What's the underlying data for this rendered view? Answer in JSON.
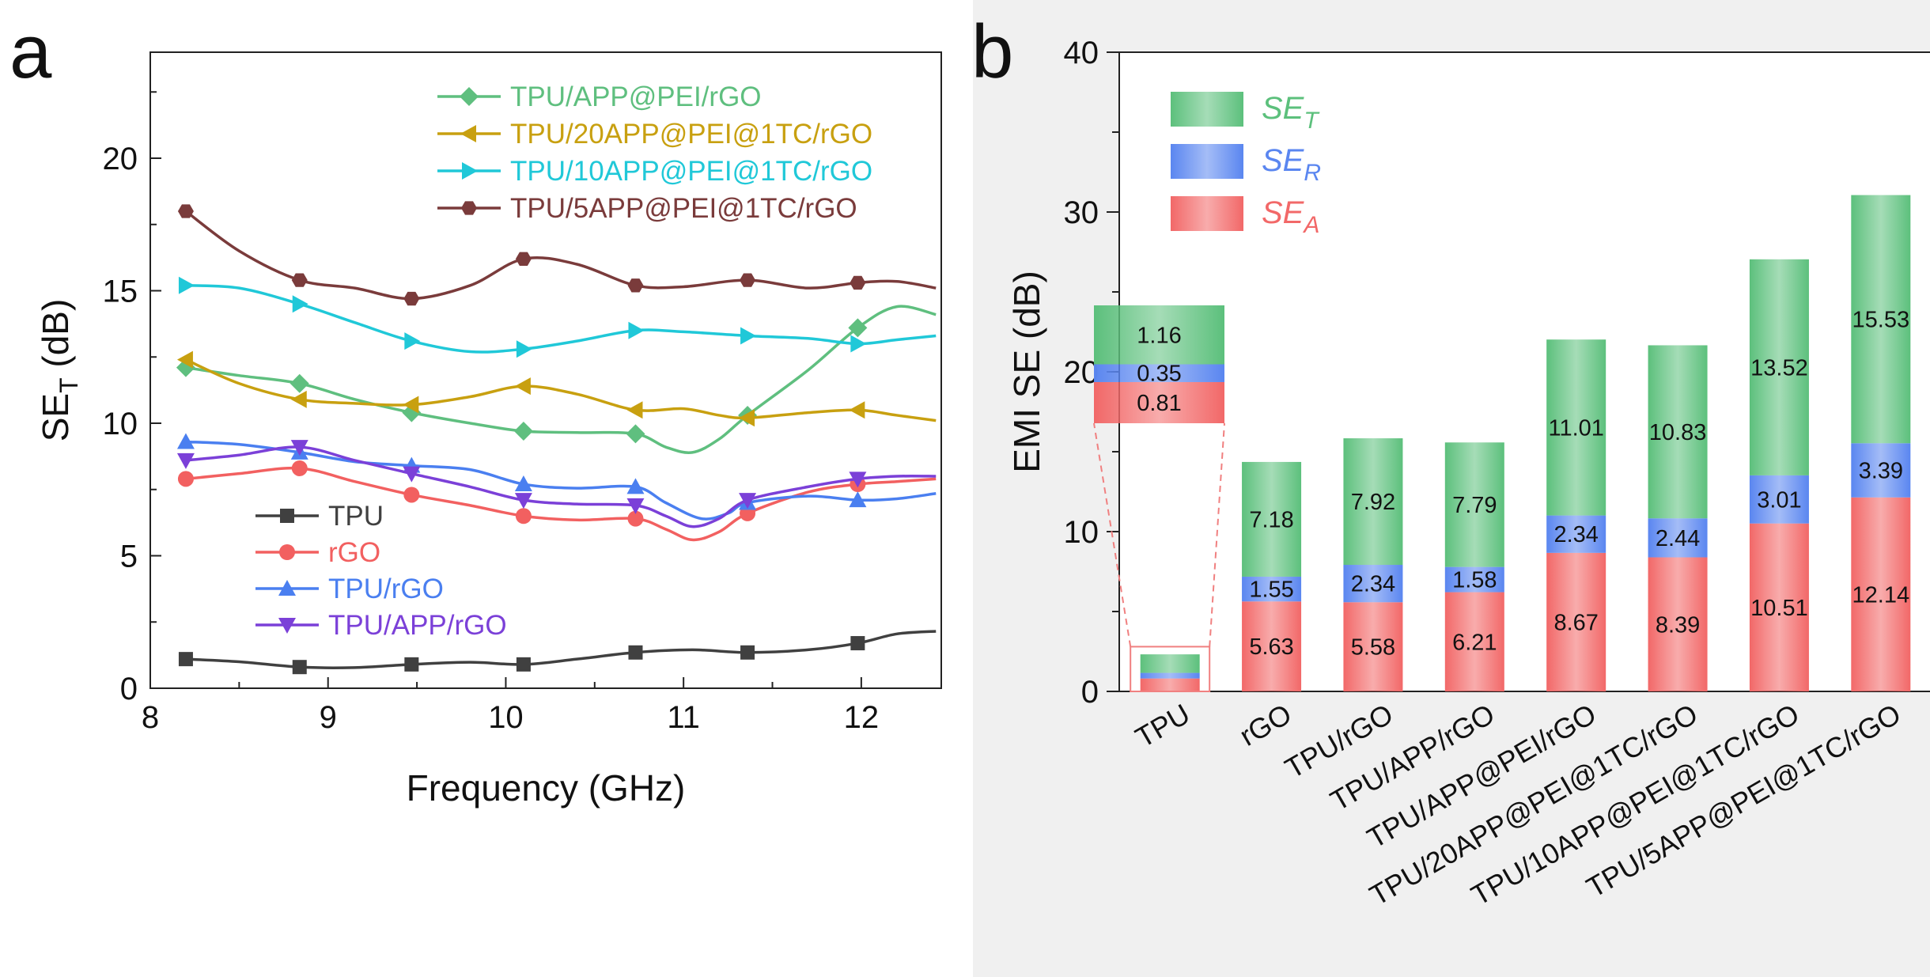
{
  "panels": {
    "a": "a",
    "b": "b"
  },
  "chart_data": [
    {
      "type": "line",
      "panel": "a",
      "title": "",
      "xlabel": "Frequency (GHz)",
      "ylabel": "SE",
      "ylabel_sub": "T",
      "ylabel_unit": "(dB)",
      "xlim": [
        8,
        12.45
      ],
      "ylim": [
        0,
        24
      ],
      "xticks": [
        "8",
        "9",
        "10",
        "11",
        "12"
      ],
      "yticks": [
        "0",
        "5",
        "10",
        "15",
        "20"
      ],
      "x": [
        8.2,
        8.84,
        9.47,
        10.1,
        10.73,
        11.36,
        11.98
      ],
      "series": [
        {
          "name": "TPU",
          "color": "#404040",
          "marker": "square",
          "values": [
            1.1,
            0.8,
            0.9,
            0.9,
            1.35,
            1.35,
            1.7
          ],
          "curve": [
            [
              8.2,
              1.1
            ],
            [
              8.5,
              1.0
            ],
            [
              8.84,
              0.8
            ],
            [
              9.15,
              0.78
            ],
            [
              9.47,
              0.9
            ],
            [
              9.8,
              0.98
            ],
            [
              10.1,
              0.9
            ],
            [
              10.4,
              1.1
            ],
            [
              10.73,
              1.35
            ],
            [
              11.05,
              1.45
            ],
            [
              11.36,
              1.35
            ],
            [
              11.7,
              1.45
            ],
            [
              11.98,
              1.7
            ],
            [
              12.2,
              2.05
            ],
            [
              12.42,
              2.15
            ]
          ]
        },
        {
          "name": "rGO",
          "color": "#f26060",
          "marker": "circle",
          "values": [
            7.9,
            8.3,
            7.3,
            6.5,
            6.4,
            6.6,
            7.7
          ],
          "curve": [
            [
              8.2,
              7.9
            ],
            [
              8.5,
              8.1
            ],
            [
              8.84,
              8.3
            ],
            [
              9.15,
              7.8
            ],
            [
              9.47,
              7.3
            ],
            [
              9.8,
              6.9
            ],
            [
              10.1,
              6.5
            ],
            [
              10.4,
              6.35
            ],
            [
              10.73,
              6.4
            ],
            [
              10.9,
              6.0
            ],
            [
              11.05,
              5.6
            ],
            [
              11.2,
              5.9
            ],
            [
              11.36,
              6.6
            ],
            [
              11.7,
              7.4
            ],
            [
              11.98,
              7.7
            ],
            [
              12.2,
              7.8
            ],
            [
              12.42,
              7.9
            ]
          ]
        },
        {
          "name": "TPU/rGO",
          "color": "#4a7ff0",
          "marker": "triangle-up",
          "values": [
            9.3,
            8.9,
            8.4,
            7.7,
            7.6,
            7.0,
            7.1
          ],
          "curve": [
            [
              8.2,
              9.3
            ],
            [
              8.5,
              9.2
            ],
            [
              8.84,
              8.9
            ],
            [
              9.15,
              8.55
            ],
            [
              9.47,
              8.4
            ],
            [
              9.8,
              8.25
            ],
            [
              10.1,
              7.7
            ],
            [
              10.4,
              7.55
            ],
            [
              10.73,
              7.6
            ],
            [
              10.9,
              7.0
            ],
            [
              11.1,
              6.4
            ],
            [
              11.25,
              6.6
            ],
            [
              11.36,
              7.0
            ],
            [
              11.7,
              7.25
            ],
            [
              11.98,
              7.1
            ],
            [
              12.2,
              7.15
            ],
            [
              12.42,
              7.35
            ]
          ]
        },
        {
          "name": "TPU/APP/rGO",
          "color": "#7b40d8",
          "marker": "triangle-down",
          "values": [
            8.6,
            9.1,
            8.1,
            7.1,
            6.9,
            7.1,
            7.9
          ],
          "curve": [
            [
              8.2,
              8.6
            ],
            [
              8.5,
              8.8
            ],
            [
              8.84,
              9.1
            ],
            [
              9.15,
              8.6
            ],
            [
              9.47,
              8.1
            ],
            [
              9.8,
              7.6
            ],
            [
              10.1,
              7.1
            ],
            [
              10.4,
              6.95
            ],
            [
              10.73,
              6.9
            ],
            [
              10.9,
              6.5
            ],
            [
              11.05,
              6.1
            ],
            [
              11.2,
              6.4
            ],
            [
              11.36,
              7.1
            ],
            [
              11.7,
              7.6
            ],
            [
              11.98,
              7.9
            ],
            [
              12.2,
              8.0
            ],
            [
              12.42,
              8.0
            ]
          ]
        },
        {
          "name": "TPU/APP@PEI/rGO",
          "color": "#5fbf7f",
          "marker": "diamond",
          "values": [
            12.1,
            11.5,
            10.4,
            9.7,
            9.6,
            10.3,
            13.6
          ],
          "curve": [
            [
              8.2,
              12.1
            ],
            [
              8.5,
              11.8
            ],
            [
              8.84,
              11.5
            ],
            [
              9.15,
              10.9
            ],
            [
              9.47,
              10.4
            ],
            [
              9.8,
              10.0
            ],
            [
              10.1,
              9.7
            ],
            [
              10.4,
              9.65
            ],
            [
              10.73,
              9.6
            ],
            [
              10.9,
              9.1
            ],
            [
              11.05,
              8.9
            ],
            [
              11.2,
              9.4
            ],
            [
              11.36,
              10.3
            ],
            [
              11.7,
              12.0
            ],
            [
              11.98,
              13.6
            ],
            [
              12.2,
              14.4
            ],
            [
              12.42,
              14.1
            ]
          ]
        },
        {
          "name": "TPU/20APP@PEI@1TC/rGO",
          "color": "#c8a010",
          "marker": "triangle-left",
          "values": [
            12.4,
            10.9,
            10.7,
            11.4,
            10.5,
            10.2,
            10.5
          ],
          "curve": [
            [
              8.2,
              12.4
            ],
            [
              8.5,
              11.5
            ],
            [
              8.84,
              10.9
            ],
            [
              9.15,
              10.75
            ],
            [
              9.47,
              10.7
            ],
            [
              9.8,
              11.0
            ],
            [
              10.1,
              11.4
            ],
            [
              10.4,
              11.1
            ],
            [
              10.73,
              10.5
            ],
            [
              11.0,
              10.55
            ],
            [
              11.2,
              10.3
            ],
            [
              11.36,
              10.2
            ],
            [
              11.7,
              10.4
            ],
            [
              11.98,
              10.5
            ],
            [
              12.2,
              10.3
            ],
            [
              12.42,
              10.1
            ]
          ]
        },
        {
          "name": "TPU/10APP@PEI@1TC/rGO",
          "color": "#20c8d8",
          "marker": "triangle-right",
          "values": [
            15.2,
            14.5,
            13.1,
            12.8,
            13.5,
            13.3,
            13.0
          ],
          "curve": [
            [
              8.2,
              15.2
            ],
            [
              8.5,
              15.1
            ],
            [
              8.84,
              14.5
            ],
            [
              9.15,
              13.8
            ],
            [
              9.47,
              13.1
            ],
            [
              9.8,
              12.7
            ],
            [
              10.1,
              12.8
            ],
            [
              10.4,
              13.1
            ],
            [
              10.73,
              13.5
            ],
            [
              11.0,
              13.45
            ],
            [
              11.36,
              13.3
            ],
            [
              11.7,
              13.2
            ],
            [
              11.98,
              13.0
            ],
            [
              12.2,
              13.15
            ],
            [
              12.42,
              13.3
            ]
          ]
        },
        {
          "name": "TPU/5APP@PEI@1TC/rGO",
          "color": "#7a3b3b",
          "marker": "hexagon",
          "values": [
            18.0,
            15.4,
            14.7,
            16.2,
            15.2,
            15.4,
            15.3
          ],
          "curve": [
            [
              8.2,
              18.0
            ],
            [
              8.5,
              16.5
            ],
            [
              8.84,
              15.4
            ],
            [
              9.15,
              15.1
            ],
            [
              9.47,
              14.7
            ],
            [
              9.8,
              15.2
            ],
            [
              10.1,
              16.2
            ],
            [
              10.4,
              16.0
            ],
            [
              10.73,
              15.2
            ],
            [
              11.0,
              15.15
            ],
            [
              11.36,
              15.4
            ],
            [
              11.7,
              15.1
            ],
            [
              11.98,
              15.3
            ],
            [
              12.2,
              15.35
            ],
            [
              12.42,
              15.1
            ]
          ]
        }
      ],
      "legend_upper": [
        "TPU/APP@PEI/rGO",
        "TPU/20APP@PEI@1TC/rGO",
        "TPU/10APP@PEI@1TC/rGO",
        "TPU/5APP@PEI@1TC/rGO"
      ],
      "legend_lower": [
        "TPU",
        "rGO",
        "TPU/rGO",
        "TPU/APP/rGO"
      ]
    },
    {
      "type": "bar",
      "stacked": true,
      "panel": "b",
      "title": "",
      "xlabel": "",
      "ylabel": "EMI SE (dB)",
      "ylim": [
        0,
        40
      ],
      "yticks": [
        "0",
        "10",
        "20",
        "30",
        "40"
      ],
      "categories": [
        "TPU",
        "rGO",
        "TPU/rGO",
        "TPU/APP/rGO",
        "TPU/APP@PEI/rGO",
        "TPU/20APP@PEI@1TC/rGO",
        "TPU/10APP@PEI@1TC/rGO",
        "TPU/5APP@PEI@1TC/rGO"
      ],
      "series": [
        {
          "name": "SE",
          "sub": "A",
          "color": "#f26868",
          "values": [
            0.81,
            5.63,
            5.58,
            6.21,
            8.67,
            8.39,
            10.51,
            12.14
          ],
          "labels": [
            "0.81",
            "5.63",
            "5.58",
            "6.21",
            "8.67",
            "8.39",
            "10.51",
            "12.14"
          ]
        },
        {
          "name": "SE",
          "sub": "R",
          "color": "#5a86f0",
          "values": [
            0.35,
            1.55,
            2.34,
            1.58,
            2.34,
            2.44,
            3.01,
            3.39
          ],
          "labels": [
            "0.35",
            "1.55",
            "2.34",
            "1.58",
            "2.34",
            "2.44",
            "3.01",
            "3.39"
          ]
        },
        {
          "name": "SE",
          "sub": "T",
          "color": "#5cc07c",
          "values": [
            1.16,
            7.18,
            7.92,
            7.79,
            11.01,
            10.83,
            13.52,
            15.53
          ],
          "labels": [
            "1.16",
            "7.18",
            "7.92",
            "7.79",
            "11.01",
            "10.83",
            "13.52",
            "15.53"
          ]
        }
      ],
      "legend": [
        "SE_T",
        "SE_R",
        "SE_A"
      ],
      "inset": {
        "category": "TPU",
        "note": "magnified view of TPU bar"
      }
    }
  ]
}
